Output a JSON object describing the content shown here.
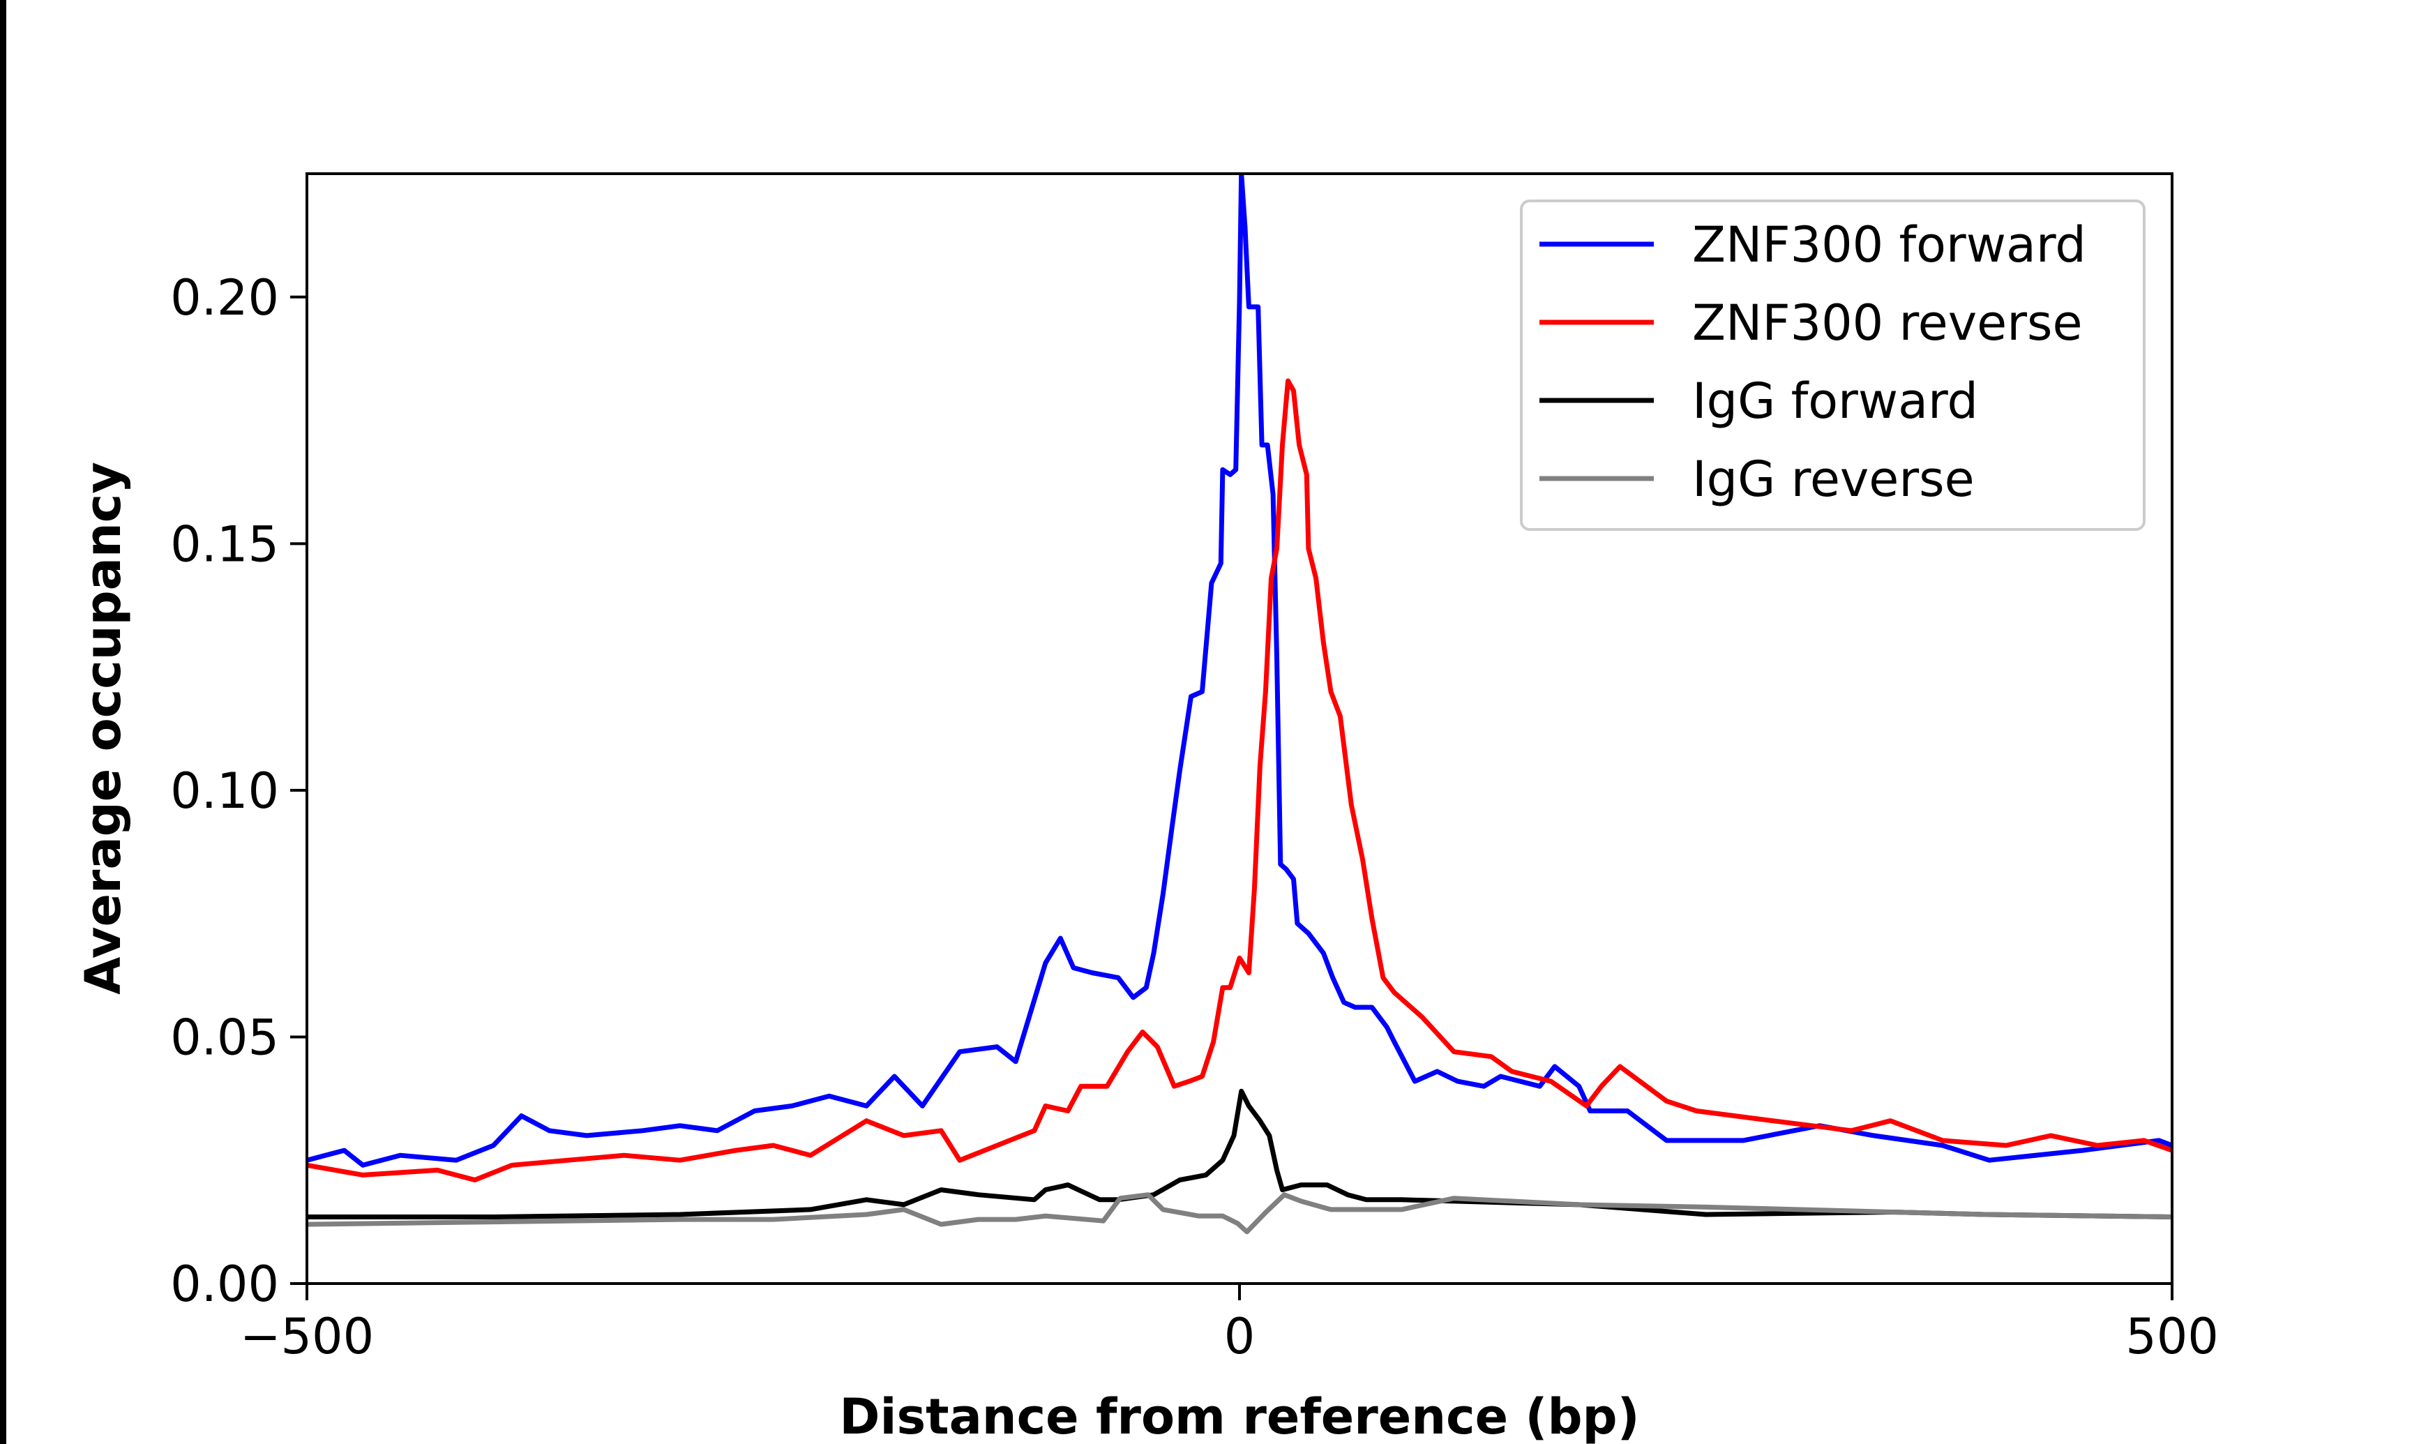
{
  "chart_data": {
    "type": "line",
    "title": "",
    "xlabel": "Distance from reference (bp)",
    "ylabel": "Average occupancy",
    "xlim": [
      -500,
      500
    ],
    "ylim": [
      0,
      0.225
    ],
    "xticks": [
      -500,
      0,
      500
    ],
    "xtick_labels": [
      "−500",
      "0",
      "500"
    ],
    "yticks": [
      0,
      0.05,
      0.1,
      0.15,
      0.2
    ],
    "ytick_labels": [
      "0.00",
      "0.05",
      "0.10",
      "0.15",
      "0.20"
    ],
    "grid": false,
    "legend_position": "top-right",
    "series": [
      {
        "name": "ZNF300 forward",
        "color": "#0000ff",
        "x": [
          -500,
          -480,
          -470,
          -450,
          -420,
          -400,
          -385,
          -370,
          -350,
          -320,
          -300,
          -280,
          -260,
          -240,
          -220,
          -200,
          -185,
          -170,
          -150,
          -130,
          -120,
          -104,
          -96,
          -89,
          -79,
          -65,
          -57,
          -50,
          -46,
          -41,
          -36,
          -32,
          -26,
          -20,
          -15,
          -10,
          -9,
          -5,
          -2,
          0,
          1,
          3,
          5,
          10,
          12,
          15,
          18,
          20,
          22,
          25,
          29,
          31,
          37,
          45,
          50,
          56,
          62,
          71,
          79,
          83,
          94,
          106,
          117,
          131,
          140,
          161,
          169,
          182,
          188,
          208,
          229,
          270,
          311,
          340,
          377,
          402,
          452,
          493,
          500
        ],
        "y": [
          0.025,
          0.027,
          0.024,
          0.026,
          0.025,
          0.028,
          0.034,
          0.031,
          0.03,
          0.031,
          0.032,
          0.031,
          0.035,
          0.036,
          0.038,
          0.036,
          0.042,
          0.036,
          0.047,
          0.048,
          0.045,
          0.065,
          0.07,
          0.064,
          0.063,
          0.062,
          0.058,
          0.06,
          0.067,
          0.079,
          0.093,
          0.104,
          0.119,
          0.12,
          0.142,
          0.146,
          0.165,
          0.164,
          0.165,
          0.199,
          0.225,
          0.214,
          0.198,
          0.198,
          0.17,
          0.17,
          0.16,
          0.127,
          0.085,
          0.084,
          0.082,
          0.073,
          0.071,
          0.067,
          0.062,
          0.057,
          0.056,
          0.056,
          0.052,
          0.049,
          0.041,
          0.043,
          0.041,
          0.04,
          0.042,
          0.04,
          0.044,
          0.04,
          0.035,
          0.035,
          0.029,
          0.029,
          0.032,
          0.03,
          0.028,
          0.025,
          0.027,
          0.029,
          0.028
        ]
      },
      {
        "name": "ZNF300 reverse",
        "color": "#ff0000",
        "x": [
          -500,
          -470,
          -430,
          -410,
          -390,
          -360,
          -330,
          -300,
          -270,
          -250,
          -230,
          -200,
          -180,
          -160,
          -150,
          -130,
          -110,
          -104,
          -92,
          -85,
          -71,
          -60,
          -52,
          -44,
          -35,
          -27,
          -20,
          -14,
          -9,
          -5,
          0,
          5,
          8,
          11,
          14,
          17,
          20,
          23,
          26,
          29,
          32,
          36,
          37,
          41,
          45,
          49,
          54,
          60,
          66,
          71,
          77,
          83,
          98,
          115,
          135,
          146,
          167,
          186,
          194,
          204,
          229,
          245,
          286,
          328,
          349,
          377,
          411,
          435,
          460,
          485,
          500
        ],
        "y": [
          0.024,
          0.022,
          0.023,
          0.021,
          0.024,
          0.025,
          0.026,
          0.025,
          0.027,
          0.028,
          0.026,
          0.033,
          0.03,
          0.031,
          0.025,
          0.028,
          0.031,
          0.036,
          0.035,
          0.04,
          0.04,
          0.047,
          0.051,
          0.048,
          0.04,
          0.041,
          0.042,
          0.049,
          0.06,
          0.06,
          0.066,
          0.063,
          0.08,
          0.105,
          0.12,
          0.143,
          0.149,
          0.17,
          0.183,
          0.181,
          0.17,
          0.164,
          0.149,
          0.143,
          0.13,
          0.12,
          0.115,
          0.097,
          0.086,
          0.074,
          0.062,
          0.059,
          0.054,
          0.047,
          0.046,
          0.043,
          0.041,
          0.036,
          0.04,
          0.044,
          0.037,
          0.035,
          0.033,
          0.031,
          0.033,
          0.029,
          0.028,
          0.03,
          0.028,
          0.029,
          0.027
        ]
      },
      {
        "name": "IgG forward",
        "color": "#000000",
        "x": [
          -500,
          -400,
          -300,
          -230,
          -200,
          -180,
          -160,
          -140,
          -110,
          -104,
          -92,
          -75,
          -65,
          -46,
          -32,
          -18,
          -9,
          -3,
          1,
          5,
          11,
          16,
          20,
          23,
          33,
          47,
          58,
          68,
          87,
          125,
          182,
          250,
          350,
          400,
          500
        ],
        "y": [
          0.0135,
          0.0135,
          0.014,
          0.015,
          0.017,
          0.016,
          0.019,
          0.018,
          0.017,
          0.019,
          0.02,
          0.017,
          0.017,
          0.018,
          0.021,
          0.022,
          0.025,
          0.03,
          0.039,
          0.036,
          0.033,
          0.03,
          0.023,
          0.019,
          0.02,
          0.02,
          0.018,
          0.017,
          0.017,
          0.0166,
          0.016,
          0.014,
          0.0145,
          0.014,
          0.0135
        ]
      },
      {
        "name": "IgG reverse",
        "color": "#808080",
        "x": [
          -500,
          -400,
          -300,
          -250,
          -200,
          -180,
          -160,
          -140,
          -120,
          -104,
          -73,
          -64,
          -49,
          -41,
          -22,
          -9,
          -1,
          4,
          14,
          24,
          33,
          49,
          87,
          115,
          182,
          250,
          350,
          400,
          500
        ],
        "y": [
          0.012,
          0.0125,
          0.013,
          0.013,
          0.014,
          0.015,
          0.012,
          0.013,
          0.013,
          0.0137,
          0.0127,
          0.0173,
          0.018,
          0.015,
          0.0137,
          0.0137,
          0.0122,
          0.0105,
          0.0144,
          0.018,
          0.0167,
          0.015,
          0.015,
          0.0173,
          0.016,
          0.0155,
          0.0145,
          0.014,
          0.0135
        ]
      }
    ]
  }
}
